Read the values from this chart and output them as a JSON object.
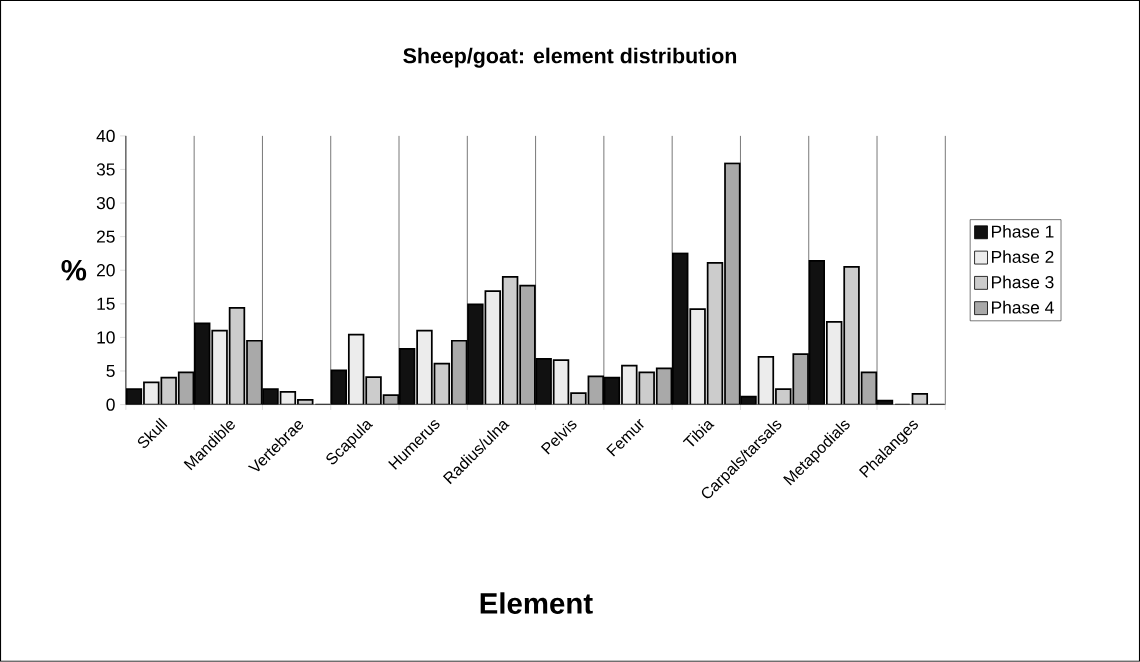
{
  "chart_data": {
    "type": "bar",
    "title": "Sheep/goat: element distribution",
    "xlabel": "Element",
    "ylabel": "%",
    "categories": [
      "Skull",
      "Mandible",
      "Vertebrae",
      "Scapula",
      "Humerus",
      "Radius/ulna",
      "Pelvis",
      "Femur",
      "Tibia",
      "Carpals/tarsals",
      "Metapodials",
      "Phalanges"
    ],
    "series": [
      {
        "name": "Phase 1",
        "color": "#111111",
        "values": [
          2.3,
          12.1,
          2.3,
          5.1,
          8.3,
          14.9,
          6.8,
          4.0,
          22.5,
          1.2,
          21.4,
          0.6
        ]
      },
      {
        "name": "Phase 2",
        "color": "#ececec",
        "values": [
          3.3,
          11.0,
          1.9,
          10.4,
          11.0,
          16.9,
          6.6,
          5.8,
          14.2,
          7.1,
          12.3,
          0
        ]
      },
      {
        "name": "Phase 3",
        "color": "#cccccc",
        "values": [
          4.0,
          14.4,
          0.7,
          4.1,
          6.1,
          19.0,
          1.7,
          4.8,
          21.1,
          2.3,
          20.5,
          1.6
        ]
      },
      {
        "name": "Phase 4",
        "color": "#a9a9a9",
        "values": [
          4.8,
          9.5,
          0,
          1.4,
          9.5,
          17.7,
          4.2,
          5.4,
          35.9,
          7.5,
          4.8,
          0
        ]
      }
    ],
    "ylim": [
      0,
      40
    ],
    "yticks": [
      0,
      5,
      10,
      15,
      20,
      25,
      30,
      35,
      40
    ],
    "grid": "x",
    "legend": "right"
  }
}
